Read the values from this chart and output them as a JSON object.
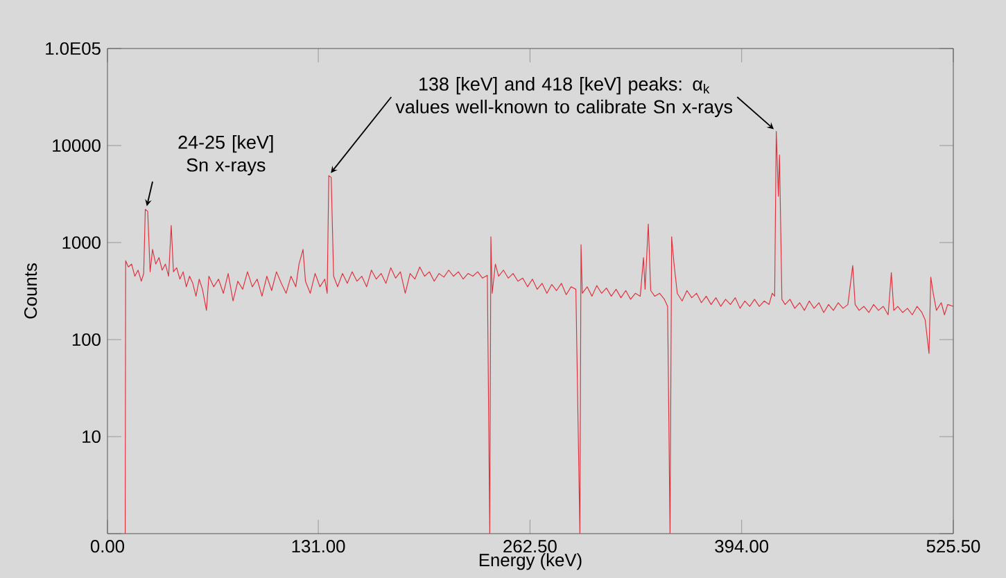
{
  "chart_data": {
    "type": "line",
    "xlabel": "Energy (keV)",
    "ylabel": "Counts",
    "log": "y",
    "grid": false,
    "line_style": "solid",
    "xlim": [
      0,
      525.5
    ],
    "ylim": [
      1,
      100000
    ],
    "xticks": [
      {
        "value": 0,
        "label": "0.00"
      },
      {
        "value": 131,
        "label": "131.00"
      },
      {
        "value": 262.5,
        "label": "262.50"
      },
      {
        "value": 394,
        "label": "394.00"
      },
      {
        "value": 525.5,
        "label": "525.50"
      }
    ],
    "yticks": [
      {
        "value": 1,
        "label": null
      },
      10,
      100,
      1000,
      10000,
      {
        "value": 100000,
        "label": "1.0E05"
      }
    ],
    "annotations": [
      {
        "text": "24-25 [keV] Sn x-rays",
        "x": 24,
        "y": 2200
      },
      "138 [keV] and 418 [keV] peaks: α$_{k}$ values well-known to calibrate Sn x-rays"
    ],
    "series": [
      {
        "color": "#e0303c",
        "x": [
          11,
          11.3,
          13,
          15,
          17,
          19,
          21,
          22.5,
          23.5,
          25,
          26.5,
          28,
          30,
          32,
          34,
          36,
          38,
          39.6,
          41,
          43,
          45,
          47,
          49,
          51,
          53,
          55,
          57,
          59,
          61.5,
          63,
          66,
          69,
          72,
          75,
          78,
          81,
          84,
          87,
          90,
          93,
          96,
          99,
          102,
          105,
          108,
          111,
          114,
          117,
          119,
          121.5,
          123,
          126,
          129,
          132,
          135,
          136.5,
          137.5,
          139,
          140.5,
          143,
          146,
          149,
          152,
          155,
          158,
          161,
          164,
          167,
          170,
          173,
          176,
          179,
          182,
          185,
          188,
          191,
          194,
          197,
          200,
          203,
          206,
          209,
          212,
          215,
          218,
          221,
          224,
          227,
          230,
          233,
          236,
          237.5,
          238.2,
          239,
          241,
          243,
          246,
          249,
          252,
          255,
          258,
          261,
          264,
          267,
          270,
          273,
          276,
          279,
          282,
          285,
          288,
          291,
          293.5,
          294.2,
          295,
          298,
          301,
          304,
          307,
          310,
          313,
          316,
          319,
          322,
          325,
          328,
          331,
          333,
          334,
          336,
          337.5,
          340,
          343,
          346,
          348,
          349.5,
          350.5,
          352,
          354,
          357,
          360,
          363,
          366,
          369,
          372,
          375,
          378,
          381,
          384,
          387,
          390,
          393,
          396,
          399,
          402,
          405,
          408,
          411,
          413,
          414.5,
          415.5,
          416.8,
          417.5,
          419,
          421,
          424,
          427,
          430,
          433,
          436,
          439,
          442,
          445,
          448,
          451,
          454,
          457,
          460,
          463,
          464.5,
          467,
          470,
          473,
          476,
          479,
          482,
          485,
          487,
          488.5,
          491,
          494,
          497,
          500,
          503,
          506,
          508,
          510.4,
          511.5,
          513,
          515,
          518,
          520,
          522,
          525.5
        ],
        "values": [
          1,
          650,
          560,
          600,
          450,
          520,
          400,
          480,
          2200,
          2100,
          500,
          850,
          600,
          700,
          520,
          600,
          450,
          1500,
          500,
          550,
          420,
          500,
          350,
          450,
          380,
          280,
          420,
          330,
          200,
          450,
          350,
          420,
          300,
          480,
          250,
          400,
          330,
          500,
          350,
          420,
          280,
          450,
          320,
          500,
          380,
          300,
          450,
          350,
          600,
          850,
          400,
          300,
          480,
          350,
          420,
          300,
          4900,
          4700,
          450,
          350,
          480,
          380,
          500,
          400,
          450,
          350,
          520,
          420,
          480,
          380,
          550,
          430,
          500,
          300,
          480,
          420,
          560,
          450,
          500,
          400,
          480,
          440,
          520,
          450,
          500,
          420,
          480,
          450,
          500,
          430,
          460,
          1,
          1150,
          300,
          600,
          450,
          520,
          430,
          480,
          400,
          430,
          350,
          420,
          330,
          380,
          300,
          370,
          320,
          380,
          290,
          350,
          330,
          1,
          950,
          300,
          350,
          280,
          360,
          300,
          340,
          280,
          330,
          270,
          320,
          260,
          300,
          280,
          700,
          330,
          1550,
          320,
          280,
          300,
          260,
          220,
          1,
          1150,
          600,
          300,
          250,
          320,
          270,
          300,
          240,
          280,
          230,
          270,
          220,
          260,
          230,
          270,
          210,
          250,
          220,
          260,
          220,
          250,
          230,
          300,
          280,
          14000,
          3000,
          8000,
          260,
          230,
          260,
          210,
          240,
          200,
          250,
          210,
          240,
          190,
          230,
          200,
          240,
          210,
          230,
          580,
          230,
          200,
          220,
          190,
          230,
          200,
          220,
          180,
          490,
          200,
          220,
          190,
          210,
          180,
          220,
          190,
          160,
          72,
          440,
          300,
          200,
          240,
          180,
          230,
          220
        ]
      }
    ]
  }
}
